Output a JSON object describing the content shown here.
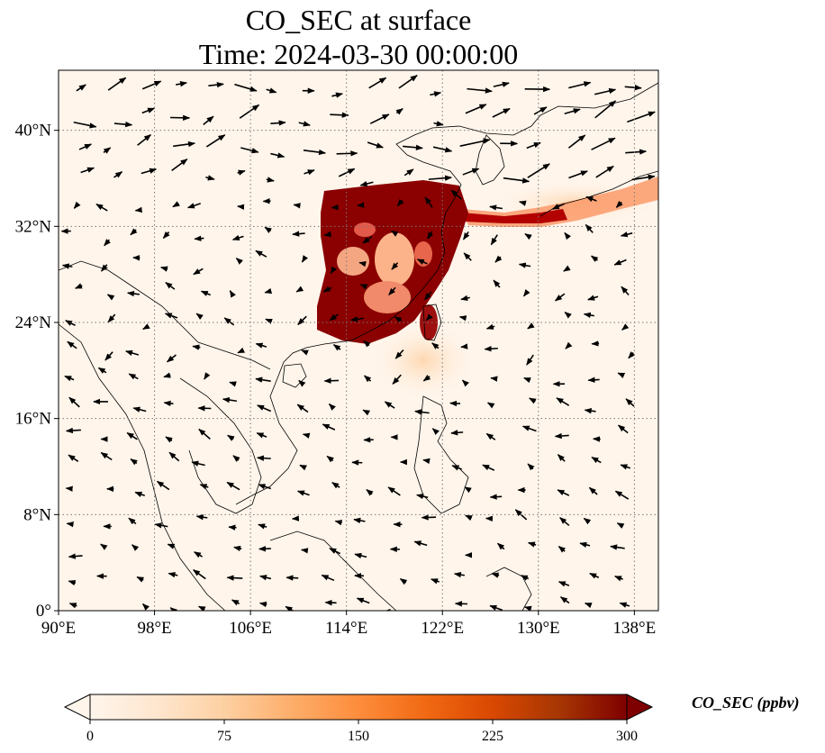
{
  "title": {
    "line1": "CO_SEC at surface",
    "line2": "Time: 2024-03-30 00:00:00"
  },
  "map": {
    "extent": {
      "lon": [
        90,
        140
      ],
      "lat": [
        0,
        45
      ]
    },
    "lon_ticks": [
      {
        "value": 90,
        "label": "90°E"
      },
      {
        "value": 98,
        "label": "98°E"
      },
      {
        "value": 106,
        "label": "106°E"
      },
      {
        "value": 114,
        "label": "114°E"
      },
      {
        "value": 122,
        "label": "122°E"
      },
      {
        "value": 130,
        "label": "130°E"
      },
      {
        "value": 138,
        "label": "138°E"
      }
    ],
    "lat_ticks": [
      {
        "value": 0,
        "label": "0°"
      },
      {
        "value": 8,
        "label": "8°N"
      },
      {
        "value": 16,
        "label": "16°N"
      },
      {
        "value": 24,
        "label": "24°N"
      },
      {
        "value": 32,
        "label": "32°N"
      },
      {
        "value": 40,
        "label": "40°N"
      }
    ],
    "gridlines": true,
    "background_color": "#fff5eb",
    "plume_color": "#8b0000"
  },
  "colorbar": {
    "label": "CO_SEC (ppbv)",
    "min": 0,
    "max": 300,
    "ticks": [
      "0",
      "75",
      "150",
      "225",
      "300"
    ],
    "colors": [
      "#fff5eb",
      "#fee6ce",
      "#fdd0a2",
      "#fdae6b",
      "#fd8d3c",
      "#f16913",
      "#d94801",
      "#a63603",
      "#7f0000"
    ],
    "extend": "both"
  }
}
